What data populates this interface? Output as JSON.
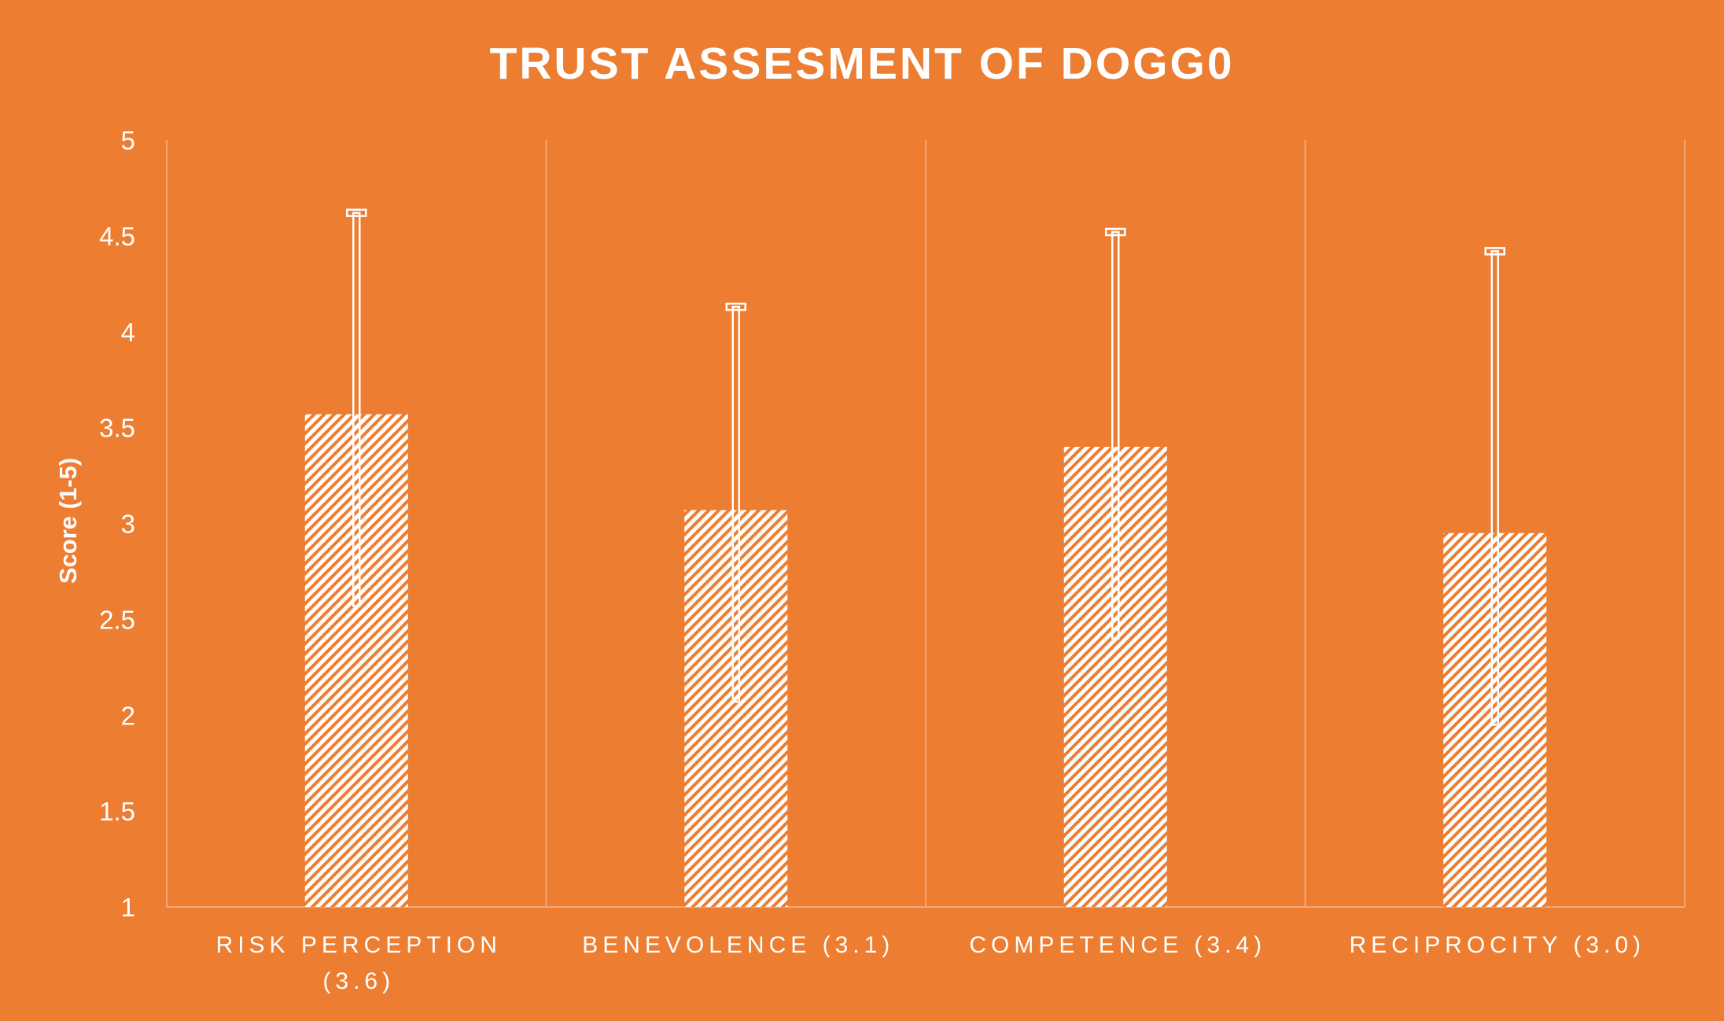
{
  "colors": {
    "background": "#ED7D31",
    "foreground": "#FFFFFF",
    "gridline": "#F4A878"
  },
  "chart_data": {
    "type": "bar",
    "title": "TRUST ASSESMENT OF DOGG0",
    "xlabel": "",
    "ylabel": "Score (1-5)",
    "ylim": [
      1,
      5
    ],
    "yticks": [
      "1",
      "1.5",
      "2",
      "2.5",
      "3",
      "3.5",
      "4",
      "4.5",
      "5"
    ],
    "categories": [
      [
        "RISK PERCEPTION",
        "(3.6)"
      ],
      [
        "BENEVOLENCE (3.1)"
      ],
      [
        "COMPETENCE (3.4)"
      ],
      [
        "RECIPROCITY (3.0)"
      ]
    ],
    "values": [
      3.57,
      3.07,
      3.4,
      2.95
    ],
    "error_low": [
      2.57,
      2.07,
      2.4,
      1.95
    ],
    "error_high": [
      4.62,
      4.13,
      4.52,
      4.42
    ],
    "bar_pattern": "diagonal-hatch",
    "grid": "vertical category separators"
  }
}
